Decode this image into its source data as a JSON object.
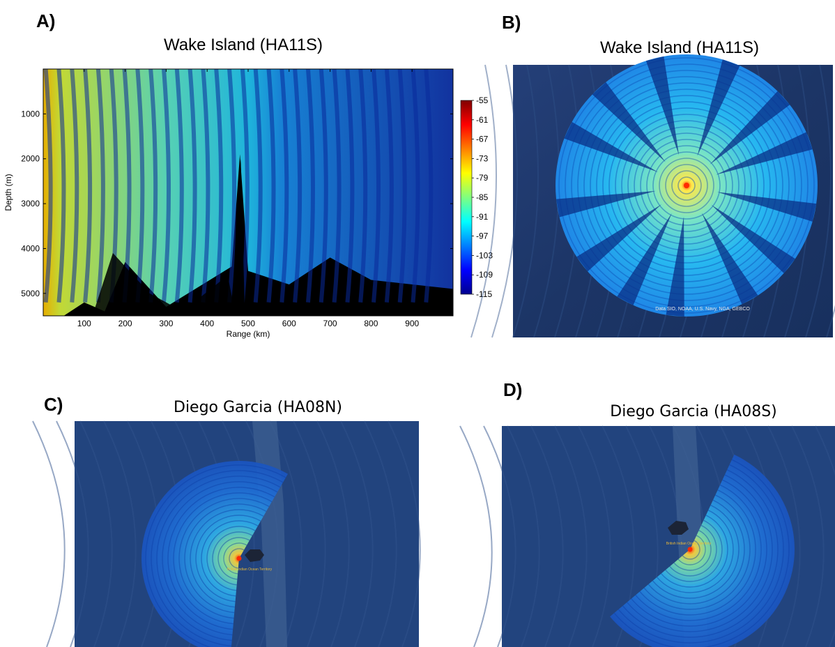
{
  "panels": {
    "a": {
      "letter": "A)",
      "title": "Wake Island (HA11S)"
    },
    "b": {
      "letter": "B)",
      "title": "Wake Island (HA11S)",
      "credit": "Data SIO, NOAA, U.S. Navy, NGA, GEBCO"
    },
    "c": {
      "letter": "C)",
      "title": "Diego Garcia (HA08N)",
      "place_label": "British Indian Ocean Territory"
    },
    "d": {
      "letter": "D)",
      "title": "Diego Garcia (HA08S)",
      "place_label": "British Indian Ocean Territory"
    }
  },
  "colors": {
    "map_bg": "#1d3f78",
    "void": "#000000",
    "source": "#ff2a00"
  },
  "chart_data": [
    {
      "type": "heatmap",
      "title": "Wake Island (HA11S)",
      "xlabel": "Range (km)",
      "ylabel": "Depth (m)",
      "xlim": [
        0,
        1000
      ],
      "ylim": [
        0,
        5500
      ],
      "y_inverted": true,
      "xticks": [
        100,
        200,
        300,
        400,
        500,
        600,
        700,
        800,
        900
      ],
      "yticks": [
        1000,
        2000,
        3000,
        4000,
        5000
      ],
      "colorbar": {
        "ticks": [
          -55,
          -61,
          -67,
          -73,
          -79,
          -85,
          -91,
          -97,
          -103,
          -109,
          -115
        ],
        "range": [
          -115,
          -55
        ],
        "colormap": "jet"
      }
    },
    {
      "type": "heatmap",
      "title": "Wake Island (HA11S)",
      "description_free": true,
      "colormap": "jet"
    },
    {
      "type": "heatmap",
      "title": "Diego Garcia (HA08N)",
      "colormap": "jet"
    },
    {
      "type": "heatmap",
      "title": "Diego Garcia (HA08S)",
      "colormap": "jet"
    }
  ]
}
